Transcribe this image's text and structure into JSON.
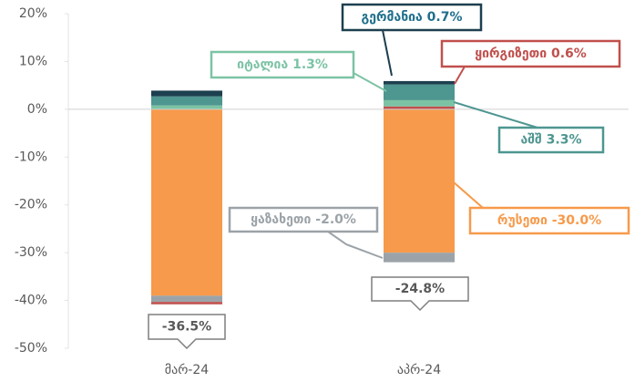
{
  "chart_data": {
    "type": "stacked-bar",
    "categories": [
      "მარ-24",
      "აპრ-24"
    ],
    "series": [
      {
        "name": "რუსეთი",
        "color": "#f79a4b",
        "values": [
          -39.0,
          -30.0
        ],
        "value_labels": [
          null,
          "-30.0%"
        ]
      },
      {
        "name": "ყაზახეთი",
        "color": "#9ca3a8",
        "values": [
          -1.3,
          -2.0
        ],
        "value_labels": [
          null,
          "-2.0%"
        ]
      },
      {
        "name": "ყირგიზეთი",
        "color": "#c0504d",
        "values": [
          -0.5,
          0.6
        ],
        "value_labels": [
          null,
          "0.6%"
        ]
      },
      {
        "name": "იტალია",
        "color": "#7cc3a5",
        "values": [
          0.8,
          1.3
        ],
        "value_labels": [
          null,
          "1.3%"
        ]
      },
      {
        "name": "აშშ",
        "color": "#4e9690",
        "values": [
          1.9,
          3.3
        ],
        "value_labels": [
          null,
          "3.3%"
        ]
      },
      {
        "name": "გერმანია",
        "color": "#1d3f4f",
        "values": [
          1.2,
          0.7
        ],
        "value_labels": [
          null,
          "0.7%"
        ]
      }
    ],
    "totals": {
      "values": [
        -36.5,
        -24.8
      ],
      "value_labels": [
        "-36.5%",
        "-24.8%"
      ]
    },
    "ylim": [
      -50,
      20
    ],
    "yticks": [
      {
        "value": -50,
        "label": "-50%"
      },
      {
        "value": -40,
        "label": "-40%"
      },
      {
        "value": -30,
        "label": "-30%"
      },
      {
        "value": -20,
        "label": "-20%"
      },
      {
        "value": -10,
        "label": "-10%"
      },
      {
        "value": 0,
        "label": "0%"
      },
      {
        "value": 10,
        "label": "10%"
      },
      {
        "value": 20,
        "label": "20%"
      }
    ],
    "grid": false
  }
}
